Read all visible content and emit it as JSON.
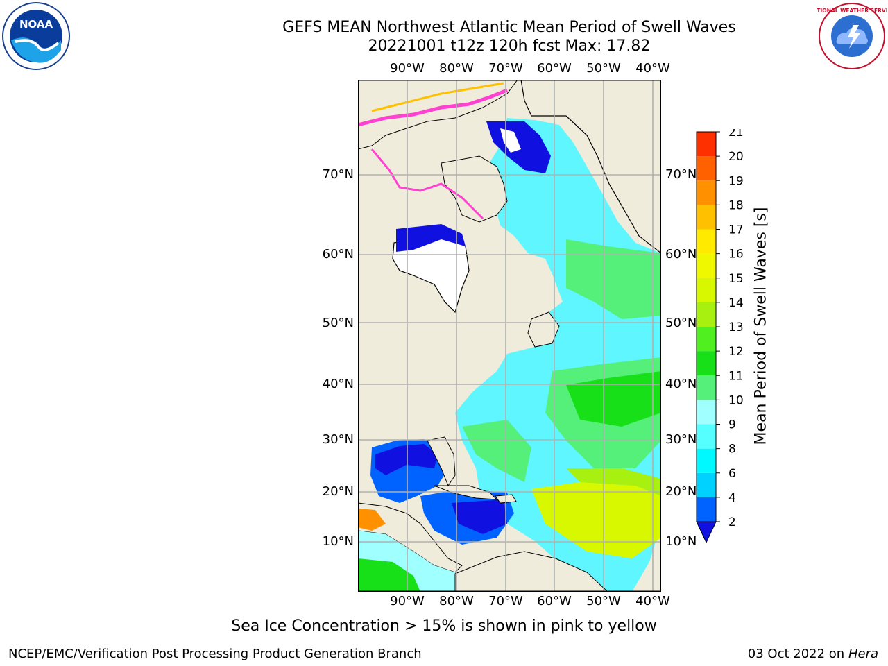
{
  "title": {
    "line1": "GEFS MEAN Northwest Atlantic Mean Period of Swell Waves",
    "line2": "20221001 t12z 120h fcst   Max: 17.82"
  },
  "logos": {
    "left": "noaa-logo",
    "right": "nws-logo",
    "left_text": "NOAA",
    "right_text": "NATIONAL WEATHER SERVICE"
  },
  "map": {
    "lon_ticks": [
      "90°W",
      "80°W",
      "70°W",
      "60°W",
      "50°W",
      "40°W"
    ],
    "lat_ticks": [
      "70°N",
      "60°N",
      "50°N",
      "40°N",
      "30°N",
      "20°N",
      "10°N"
    ],
    "colors": {
      "land": "#efecdc",
      "ice_free_gap": "#ffffff",
      "gridlines": "#b0b0b0",
      "coast": "#000000"
    }
  },
  "colorbar": {
    "label": "Mean Period of Swell Waves [s]",
    "ticks": [
      "2",
      "4",
      "6",
      "8",
      "9",
      "10",
      "11",
      "12",
      "13",
      "14",
      "15",
      "16",
      "17",
      "18",
      "19",
      "20",
      "21"
    ],
    "colors": [
      "#0062ff",
      "#00d2ff",
      "#00f8ff",
      "#55ffff",
      "#a0ffff",
      "#55f07a",
      "#18e018",
      "#50f020",
      "#a8f010",
      "#d8f800",
      "#f0f800",
      "#ffea00",
      "#ffc000",
      "#ff9000",
      "#ff6000",
      "#ff3000",
      "#ff0000"
    ],
    "under_color": "#1010e0"
  },
  "footer": {
    "sea_ice_note": "Sea Ice Concentration > 15% is shown in pink to yellow",
    "credit_left": "NCEP/EMC/Verification Post Processing Product Generation Branch",
    "credit_date": "03 Oct 2022 on",
    "credit_host": "Hera"
  }
}
